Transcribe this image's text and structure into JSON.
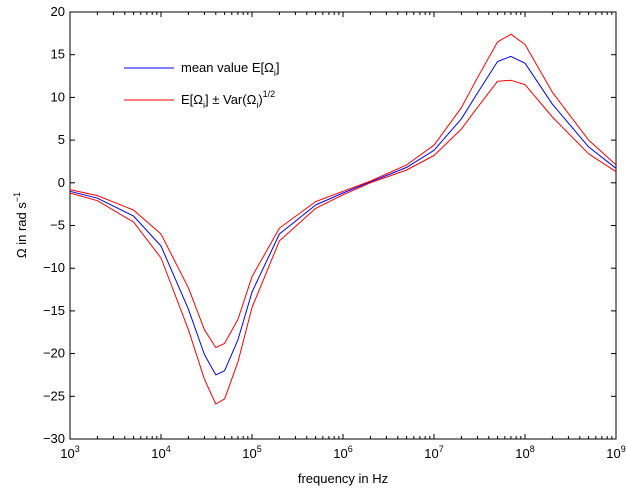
{
  "chart_data": {
    "type": "line",
    "title": "",
    "xlabel": "frequency in Hz",
    "ylabel": "Ω in rad s",
    "ylabel_sup": "−1",
    "x_scale": "log",
    "xlim": [
      1000,
      1000000000
    ],
    "ylim": [
      -30,
      20
    ],
    "grid": false,
    "legend_position": "top-left",
    "x_ticks": [
      {
        "value": 1000,
        "base": "10",
        "exp": "3"
      },
      {
        "value": 10000,
        "base": "10",
        "exp": "4"
      },
      {
        "value": 100000,
        "base": "10",
        "exp": "5"
      },
      {
        "value": 1000000,
        "base": "10",
        "exp": "6"
      },
      {
        "value": 10000000,
        "base": "10",
        "exp": "7"
      },
      {
        "value": 100000000,
        "base": "10",
        "exp": "8"
      },
      {
        "value": 1000000000,
        "base": "10",
        "exp": "9"
      }
    ],
    "y_ticks": [
      {
        "value": 20,
        "label": "20"
      },
      {
        "value": 15,
        "label": "15"
      },
      {
        "value": 10,
        "label": "10"
      },
      {
        "value": 5,
        "label": "5"
      },
      {
        "value": 0,
        "label": "0"
      },
      {
        "value": -5,
        "label": "−5"
      },
      {
        "value": -10,
        "label": "−10"
      },
      {
        "value": -15,
        "label": "−15"
      },
      {
        "value": -20,
        "label": "−20"
      },
      {
        "value": -25,
        "label": "−25"
      },
      {
        "value": -30,
        "label": "−30"
      }
    ],
    "x": [
      1000,
      2000,
      5000,
      10000,
      20000,
      30000,
      40000,
      50000,
      70000,
      100000,
      200000,
      500000,
      1000000,
      2000000,
      5000000,
      10000000,
      20000000,
      30000000,
      50000000,
      70000000,
      100000000,
      200000000,
      500000000,
      1000000000
    ],
    "series": [
      {
        "name": "mean value E[Ω_i]",
        "color": "#0000ff",
        "values": [
          -1.0,
          -1.8,
          -3.9,
          -7.4,
          -14.8,
          -20.1,
          -22.5,
          -22.0,
          -18.4,
          -12.8,
          -6.0,
          -2.6,
          -1.2,
          0.1,
          1.8,
          3.8,
          7.5,
          10.5,
          14.2,
          14.8,
          14.0,
          9.2,
          4.2,
          1.7
        ]
      },
      {
        "name": "E[Ω_i] ± Var(Ω_i)^1/2",
        "color": "#ff0000",
        "values": [
          -0.8,
          -1.5,
          -3.2,
          -6.0,
          -12.3,
          -17.2,
          -19.3,
          -18.8,
          -16.0,
          -11.0,
          -5.3,
          -2.2,
          -1.0,
          0.2,
          2.1,
          4.4,
          8.8,
          12.3,
          16.5,
          17.4,
          16.2,
          10.6,
          5.0,
          2.1
        ]
      },
      {
        "name": "E[Ω_i] ± Var(Ω_i)^1/2",
        "color": "#ff0000",
        "values": [
          -1.2,
          -2.1,
          -4.6,
          -8.8,
          -17.2,
          -23.0,
          -25.9,
          -25.3,
          -21.0,
          -14.6,
          -6.8,
          -3.0,
          -1.4,
          0.0,
          1.5,
          3.2,
          6.3,
          8.8,
          11.9,
          12.0,
          11.5,
          7.7,
          3.4,
          1.3
        ]
      }
    ],
    "legend": [
      {
        "color": "#0000ff",
        "text": "mean value E[Ω",
        "sub": "i",
        "tail": "]"
      },
      {
        "color": "#ff0000",
        "text": "E[Ω",
        "sub": "i",
        "mid1": "] ± Var(Ω",
        "sub2": "i",
        "mid2": ")",
        "sup": "1/2"
      }
    ]
  }
}
